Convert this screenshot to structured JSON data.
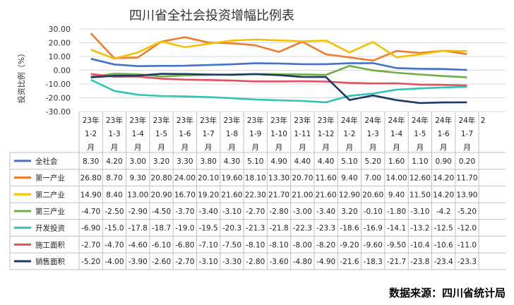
{
  "chart_data": {
    "type": "line",
    "title": "四川省全社会投资增幅比例表",
    "ylabel": "投资比例（%）",
    "ylim": [
      -30,
      30
    ],
    "yticks": [
      "30.00",
      "20.00",
      "10.00",
      "0.00",
      "-10.00",
      "-20.00",
      "-30.00"
    ],
    "grid": true,
    "legend": "table-below",
    "categories": [
      [
        "23年",
        "1-2",
        "月"
      ],
      [
        "23年",
        "1-3",
        "月"
      ],
      [
        "23年",
        "1-4",
        "月"
      ],
      [
        "23年",
        "1-5",
        "月"
      ],
      [
        "23年",
        "1-6",
        "月"
      ],
      [
        "23年",
        "1-7",
        "月"
      ],
      [
        "23年",
        "1-8",
        "月"
      ],
      [
        "23年",
        "1-9",
        "月"
      ],
      [
        "23年",
        "1-10",
        "月"
      ],
      [
        "23年",
        "1-11",
        "月"
      ],
      [
        "23年",
        "1-12",
        "月"
      ],
      [
        "24年",
        "1-2",
        "月"
      ],
      [
        "24年",
        "1-3",
        "月"
      ],
      [
        "24年",
        "1-4",
        "月"
      ],
      [
        "24年",
        "1-5",
        "月"
      ],
      [
        "24年",
        "1-6",
        "月"
      ],
      [
        "24年",
        "1-7",
        "月"
      ]
    ],
    "truncated_category": "2",
    "series": [
      {
        "name": "全社会",
        "color": "#4472c4",
        "values": [
          8.3,
          4.2,
          3.0,
          3.2,
          3.3,
          3.8,
          4.3,
          5.1,
          4.9,
          4.4,
          4.4,
          5.1,
          5.2,
          1.6,
          1.1,
          0.9,
          0.2
        ],
        "labels": [
          "8.30",
          "4.20",
          "3.00",
          "3.20",
          "3.30",
          "3.80",
          "4.30",
          "5.10",
          "4.90",
          "4.40",
          "4.40",
          "5.10",
          "5.20",
          "1.60",
          "1.10",
          "0.90",
          "0.20"
        ]
      },
      {
        "name": "第一产业",
        "color": "#ed7d31",
        "values": [
          26.8,
          8.7,
          9.3,
          20.8,
          24.0,
          20.1,
          19.6,
          18.1,
          13.3,
          20.7,
          11.6,
          9.4,
          7.0,
          14.0,
          12.6,
          14.2,
          11.7
        ],
        "labels": [
          "26.80",
          "8.70",
          "9.30",
          "20.80",
          "24.00",
          "20.10",
          "19.60",
          "18.10",
          "13.30",
          "20.70",
          "11.60",
          "9.40",
          "7.00",
          "14.00",
          "12.60",
          "14.20",
          "11.70"
        ]
      },
      {
        "name": "第二产业",
        "color": "#f5c000",
        "values": [
          14.9,
          8.4,
          13.0,
          20.9,
          16.7,
          19.2,
          21.6,
          22.3,
          21.7,
          21.0,
          21.6,
          12.9,
          20.6,
          9.4,
          11.5,
          14.2,
          13.9
        ],
        "labels": [
          "14.90",
          "8.40",
          "13.00",
          "20.90",
          "16.70",
          "19.20",
          "21.60",
          "22.30",
          "21.70",
          "21.00",
          "21.60",
          "12.90",
          "20.60",
          "9.40",
          "11.50",
          "14.20",
          "13.90"
        ]
      },
      {
        "name": "第三产业",
        "color": "#70ad47",
        "values": [
          -4.7,
          -2.5,
          -2.9,
          -4.5,
          -3.7,
          -3.4,
          -3.1,
          -2.7,
          -2.8,
          -3.0,
          -3.4,
          3.2,
          -0.1,
          -1.8,
          -3.1,
          -4.2,
          -5.2
        ],
        "labels": [
          "-4.70",
          "-2.50",
          "-2.90",
          "-4.50",
          "-3.70",
          "-3.40",
          "-3.10",
          "-2.70",
          "-2.80",
          "-3.00",
          "-3.40",
          "3.20",
          "-0.10",
          "-1.80",
          "-3.10",
          "-4.2",
          "-5.20"
        ]
      },
      {
        "name": "开发投资",
        "color": "#2ec4b6",
        "values": [
          -6.9,
          -15.0,
          -17.8,
          -18.7,
          -19.0,
          -19.5,
          -20.3,
          -21.3,
          -21.8,
          -22.3,
          -23.3,
          -18.6,
          -16.9,
          -14.1,
          -13.2,
          -12.5,
          -12.0
        ],
        "labels": [
          "-6.90",
          "-15.0",
          "-17.8",
          "-18.7",
          "-19.0",
          "-19.5",
          "-20.3",
          "-21.3",
          "-21.8",
          "-22.3",
          "-23.3",
          "-18.6",
          "-16.9",
          "-14.1",
          "-13.2",
          "-12.5",
          "-12.0"
        ]
      },
      {
        "name": "施工面积",
        "color": "#e0505f",
        "values": [
          -2.7,
          -4.7,
          -4.6,
          -6.1,
          -6.8,
          -7.1,
          -7.5,
          -8.1,
          -8.1,
          -8.0,
          -8.2,
          -9.2,
          -9.6,
          -9.5,
          -10.4,
          -10.6,
          -11.0
        ],
        "labels": [
          "-2.70",
          "-4.70",
          "-4.60",
          "-6.10",
          "-6.80",
          "-7.10",
          "-7.50",
          "-8.10",
          "-8.10",
          "-8.00",
          "-8.20",
          "-9.20",
          "-9.60",
          "-9.50",
          "-10.4",
          "-10.6",
          "-11.0"
        ]
      },
      {
        "name": "销售面积",
        "color": "#1f3864",
        "values": [
          -5.2,
          -4.0,
          -3.9,
          -2.6,
          -2.7,
          -3.1,
          -3.3,
          -2.8,
          -3.6,
          -4.8,
          -4.9,
          -21.6,
          -18.3,
          -21.7,
          -23.8,
          -23.4,
          -23.3
        ],
        "labels": [
          "-5.20",
          "-4.00",
          "-3.90",
          "-2.60",
          "-2.70",
          "-3.10",
          "-3.30",
          "-2.80",
          "-3.60",
          "-4.80",
          "-4.90",
          "-21.6",
          "-18.3",
          "-21.7",
          "-23.8",
          "-23.4",
          "-23.3"
        ]
      }
    ]
  },
  "source": "数据来源：四川省统计局"
}
